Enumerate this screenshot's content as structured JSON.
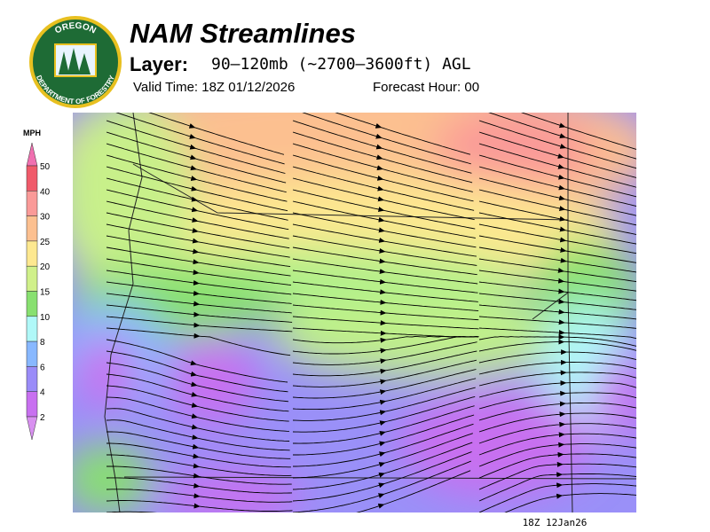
{
  "header": {
    "title": "NAM Streamlines",
    "layer_label": "Layer:",
    "layer": "90–120mb (~2700–3600ft) AGL",
    "valid_time": "Valid Time: 18Z 01/12/2026",
    "forecast_hour": "Forecast Hour: 00"
  },
  "logo": {
    "top": "OREGON",
    "bottom": "DEPARTMENT OF FORESTRY"
  },
  "legend": {
    "title": "MPH",
    "ticks": [
      50,
      40,
      30,
      25,
      20,
      15,
      10,
      8,
      6,
      4,
      2
    ],
    "colors": [
      "#f070b0",
      "#f05a6a",
      "#fa9a98",
      "#fcc090",
      "#fde890",
      "#d0f08a",
      "#88e070",
      "#b0f8f8",
      "#88b8ff",
      "#9a8cf8",
      "#c870f0",
      "#d890f0"
    ]
  },
  "footer": "18Z 12Jan26"
}
